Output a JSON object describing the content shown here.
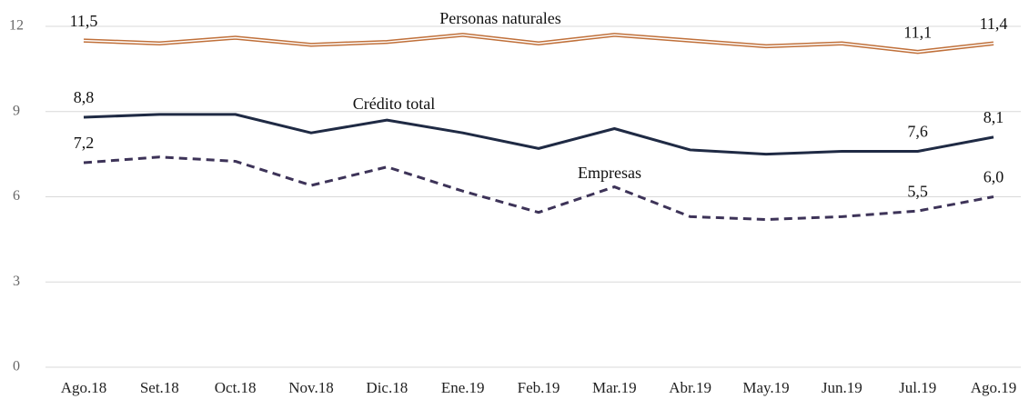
{
  "chart_data": {
    "type": "line",
    "categories": [
      "Ago.18",
      "Set.18",
      "Oct.18",
      "Nov.18",
      "Dic.18",
      "Ene.19",
      "Feb.19",
      "Mar.19",
      "Abr.19",
      "May.19",
      "Jun.19",
      "Jul.19",
      "Ago.19"
    ],
    "ylim": [
      0,
      12
    ],
    "yticks": [
      0,
      3,
      6,
      9,
      12
    ],
    "grid": true,
    "series": [
      {
        "name": "Personas naturales",
        "color": "#c0703a",
        "style": "double",
        "values": [
          11.5,
          11.4,
          11.6,
          11.35,
          11.45,
          11.7,
          11.4,
          11.7,
          11.5,
          11.3,
          11.4,
          11.1,
          11.4
        ],
        "value_labels": [
          "11,5",
          null,
          null,
          null,
          null,
          null,
          null,
          null,
          null,
          null,
          null,
          "11,1",
          "11,4"
        ]
      },
      {
        "name": "Crédito total",
        "color": "#1f2a44",
        "style": "solid",
        "values": [
          8.8,
          8.9,
          8.9,
          8.25,
          8.7,
          8.25,
          7.7,
          8.4,
          7.65,
          7.5,
          7.6,
          7.6,
          8.1
        ],
        "value_labels": [
          "8,8",
          null,
          null,
          null,
          null,
          null,
          null,
          null,
          null,
          null,
          null,
          "7,6",
          "8,1"
        ]
      },
      {
        "name": "Empresas",
        "color": "#3d3358",
        "style": "dashed",
        "values": [
          7.2,
          7.4,
          7.25,
          6.4,
          7.05,
          6.2,
          5.45,
          6.35,
          5.3,
          5.2,
          5.3,
          5.5,
          6.0
        ],
        "value_labels": [
          "7,2",
          null,
          null,
          null,
          null,
          null,
          null,
          null,
          null,
          null,
          null,
          "5,5",
          "6,0"
        ]
      }
    ]
  }
}
